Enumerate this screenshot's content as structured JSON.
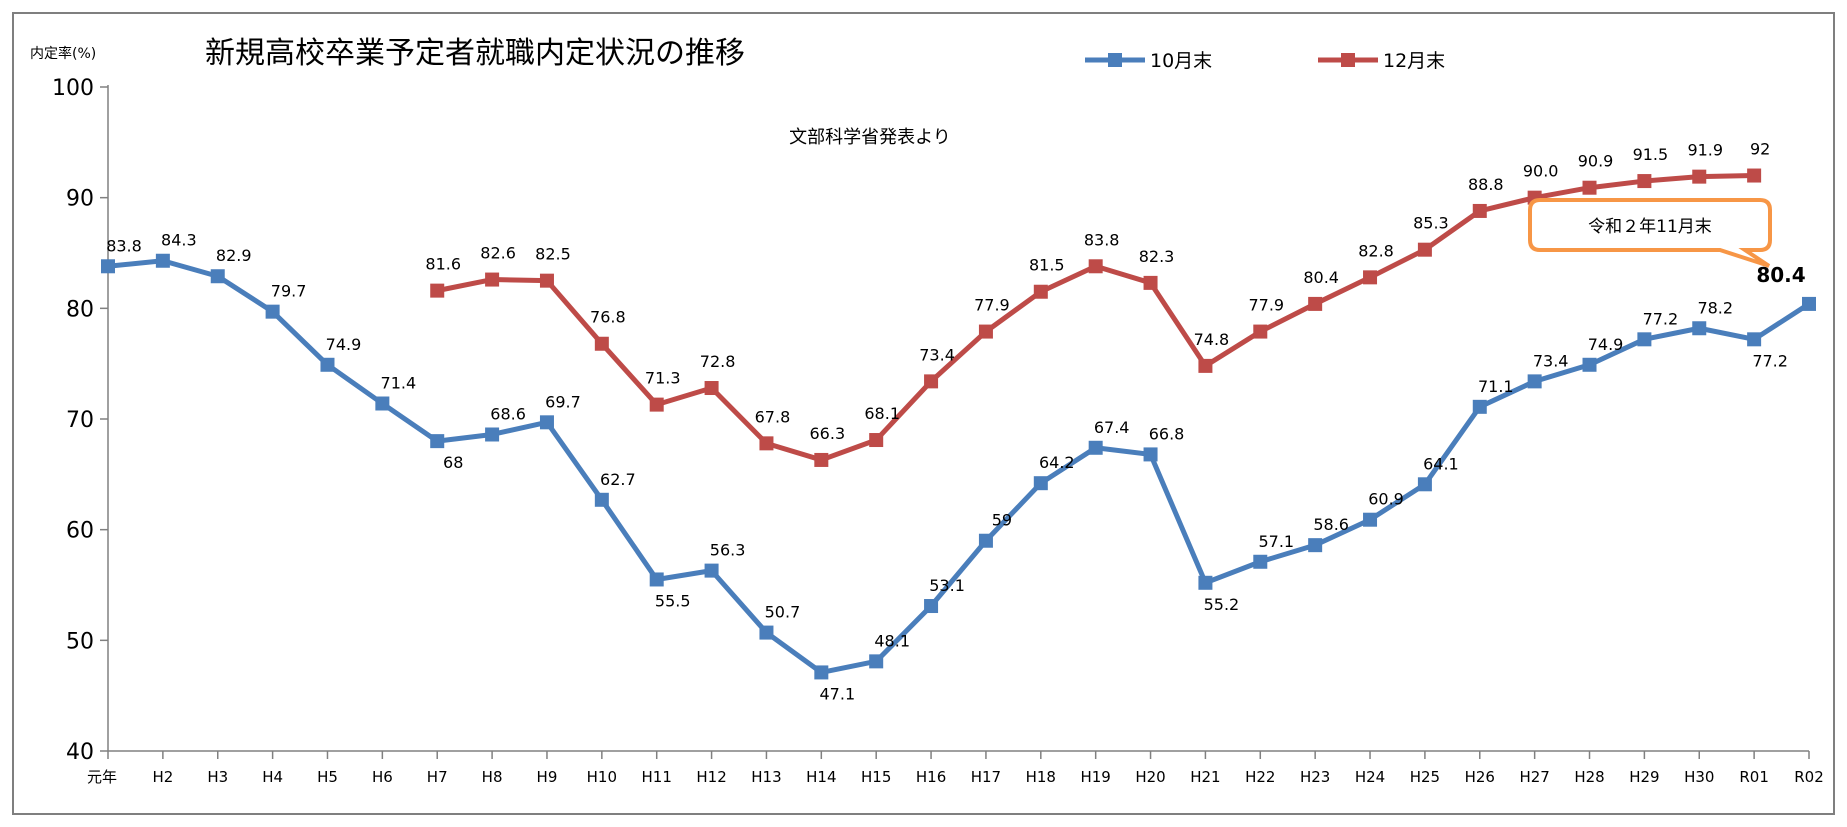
{
  "chart_data": {
    "type": "line",
    "title": "新規高校卒業予定者就職内定状況の推移",
    "subtitle": "文部科学省発表より",
    "ylabel": "内定率(%)",
    "ylim": [
      40,
      100
    ],
    "yticks": [
      "40",
      "50",
      "60",
      "70",
      "80",
      "90",
      "100"
    ],
    "legend_position": "top-right",
    "categories": [
      "元年",
      "H2",
      "H3",
      "H4",
      "H5",
      "H6",
      "H7",
      "H8",
      "H9",
      "H10",
      "H11",
      "H12",
      "H13",
      "H14",
      "H15",
      "H16",
      "H17",
      "H18",
      "H19",
      "H20",
      "H21",
      "H22",
      "H23",
      "H24",
      "H25",
      "H26",
      "H27",
      "H28",
      "H29",
      "H30",
      "R01",
      "R02"
    ],
    "series": [
      {
        "name": "10月末",
        "color": "#4a7ebb",
        "values": [
          83.8,
          84.3,
          82.9,
          79.7,
          74.9,
          71.4,
          68,
          68.6,
          69.7,
          62.7,
          55.5,
          56.3,
          50.7,
          47.1,
          48.1,
          53.1,
          59,
          64.2,
          67.4,
          66.8,
          55.2,
          57.1,
          58.6,
          60.9,
          64.1,
          71.1,
          73.4,
          74.9,
          77.2,
          78.2,
          77.2,
          80.4
        ],
        "labels": [
          "83.8",
          "84.3",
          "82.9",
          "79.7",
          "74.9",
          "71.4",
          "68",
          "68.6",
          "69.7",
          "62.7",
          "55.5",
          "56.3",
          "50.7",
          "47.1",
          "48.1",
          "53.1",
          "59",
          "64.2",
          "67.4",
          "66.8",
          "55.2",
          "57.1",
          "58.6",
          "60.9",
          "64.1",
          "71.1",
          "73.4",
          "74.9",
          "77.2",
          "78.2",
          "77.2",
          "80.4"
        ]
      },
      {
        "name": "12月末",
        "color": "#be4b48",
        "values": [
          null,
          null,
          null,
          null,
          null,
          null,
          81.6,
          82.6,
          82.5,
          76.8,
          71.3,
          72.8,
          67.8,
          66.3,
          68.1,
          73.4,
          77.9,
          81.5,
          83.8,
          82.3,
          74.8,
          77.9,
          80.4,
          82.8,
          85.3,
          88.8,
          90.0,
          90.9,
          91.5,
          91.9,
          92,
          null
        ],
        "labels": [
          null,
          null,
          null,
          null,
          null,
          null,
          "81.6",
          "82.6",
          "82.5",
          "76.8",
          "71.3",
          "72.8",
          "67.8",
          "66.3",
          "68.1",
          "73.4",
          "77.9",
          "81.5",
          "83.8",
          "82.3",
          "74.8",
          "77.9",
          "80.4",
          "82.8",
          "85.3",
          "88.8",
          "90.0",
          "90.9",
          "91.5",
          "91.9",
          "92",
          null
        ]
      }
    ],
    "callout": {
      "text": "令和２年11月末",
      "target": "R02",
      "color": "#f79646",
      "highlight_color": "#ff0000"
    }
  }
}
